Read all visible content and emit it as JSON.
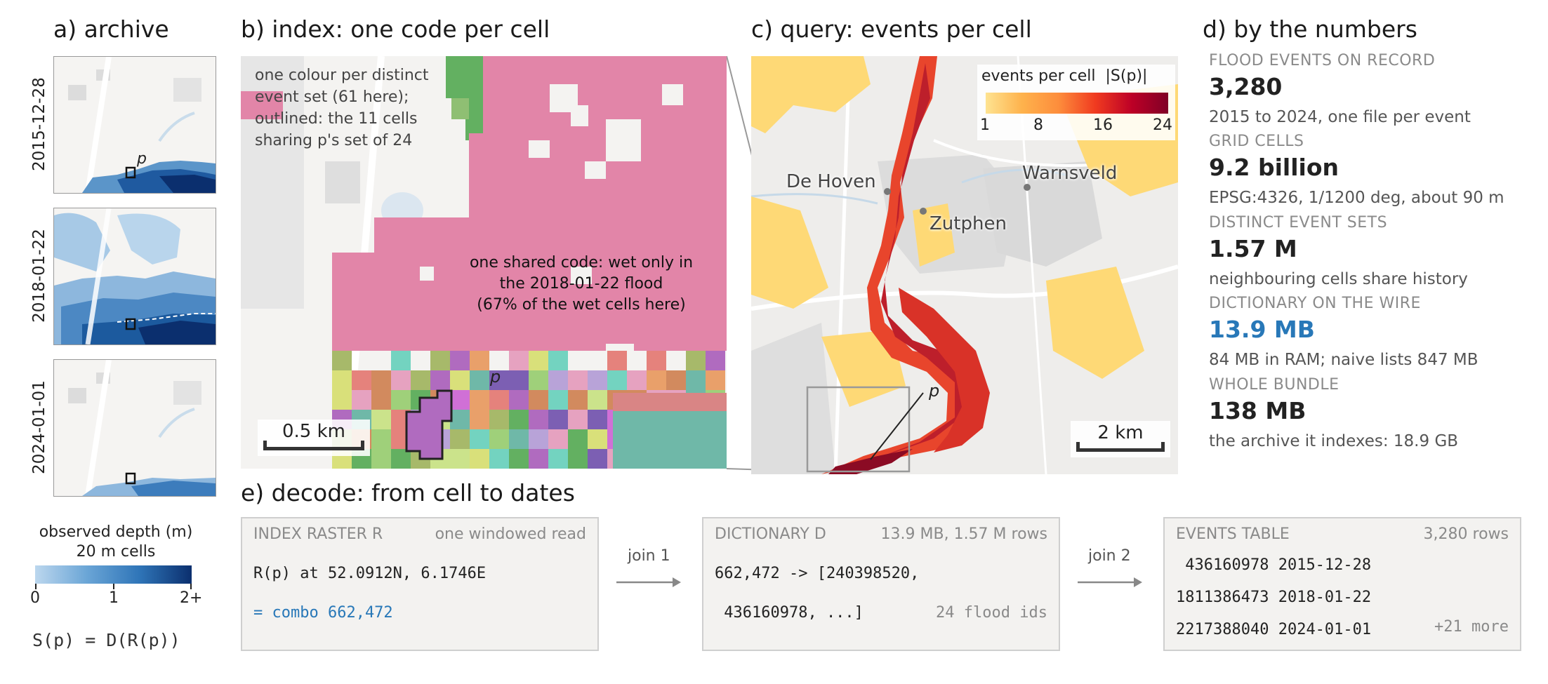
{
  "panels": {
    "a_title": "a) archive",
    "b_title": "b) index: one code per cell",
    "c_title": "c) query: events per cell",
    "d_title": "d) by the numbers",
    "e_title": "e) decode: from cell to dates"
  },
  "archive": {
    "dates": [
      "2015-12-28",
      "2018-01-22",
      "2024-01-01"
    ],
    "point_label": "p",
    "legend_title_1": "observed depth (m)",
    "legend_title_2": "20 m cells",
    "legend_ticks": [
      "0",
      "1",
      "2+"
    ],
    "formula": "S(p) = D(R(p))"
  },
  "index": {
    "note_1": "one colour per distinct",
    "note_2": "event set (61 here);",
    "note_3": "outlined: the 11 cells",
    "note_4": "sharing p's set of 24",
    "center_1": "one shared code: wet only in",
    "center_2": "the 2018-01-22 flood",
    "center_3": "(67% of the wet cells here)",
    "point_label": "p",
    "scale_label": "0.5 km",
    "wet_cells_share_pct": 67,
    "distinct_sets": 61,
    "outlined_cells": 11
  },
  "query": {
    "legend_title": "events per cell",
    "legend_formula": "|S(p)|",
    "legend_ticks": [
      "1",
      "8",
      "16",
      "24"
    ],
    "towns": [
      "De Hoven",
      "Zutphen",
      "Warnsveld"
    ],
    "point_label": "p",
    "scale_label": "2 km"
  },
  "numbers": [
    {
      "caption": "FLOOD EVENTS ON RECORD",
      "value": "3,280",
      "sub": "2015 to 2024, one file per event",
      "color": "#222222"
    },
    {
      "caption": "GRID CELLS",
      "value": "9.2 billion",
      "sub": "EPSG:4326, 1/1200 deg, about 90 m",
      "color": "#222222"
    },
    {
      "caption": "DISTINCT EVENT SETS",
      "value": "1.57 M",
      "sub": "neighbouring cells share history",
      "color": "#222222"
    },
    {
      "caption": "DICTIONARY ON THE WIRE",
      "value": "13.9 MB",
      "sub": "84 MB in RAM; naive lists 847 MB",
      "color": "#2878b8"
    },
    {
      "caption": "WHOLE BUNDLE",
      "value": "138 MB",
      "sub": "the archive it indexes: 18.9 GB",
      "color": "#222222"
    }
  ],
  "decode": {
    "index_box": {
      "head_left": "INDEX RASTER R",
      "head_right": "one windowed read",
      "line_1": "R(p) at 52.0912N, 6.1746E",
      "line_2": "= combo 662,472"
    },
    "join_1": "join 1",
    "dict_box": {
      "head_left": "DICTIONARY D",
      "head_right": "13.9 MB, 1.57 M rows",
      "line_1": "662,472 -> [240398520,",
      "line_2": " 436160978, ...]",
      "line_2_right": "24 flood ids"
    },
    "join_2": "join 2",
    "events_box": {
      "head_left": "EVENTS TABLE",
      "head_right": "3,280 rows",
      "rows": [
        {
          "id": " 436160978",
          "date": "2015-12-28"
        },
        {
          "id": "1811386473",
          "date": "2018-01-22"
        },
        {
          "id": "2217388040",
          "date": "2024-01-01"
        }
      ],
      "more": "+21 more"
    }
  },
  "colors": {
    "accent_blue": "#2878b8",
    "flood_pink": "#e285a8",
    "box_bg": "#f3f2f0",
    "map_bg": "#f4f3f1"
  }
}
